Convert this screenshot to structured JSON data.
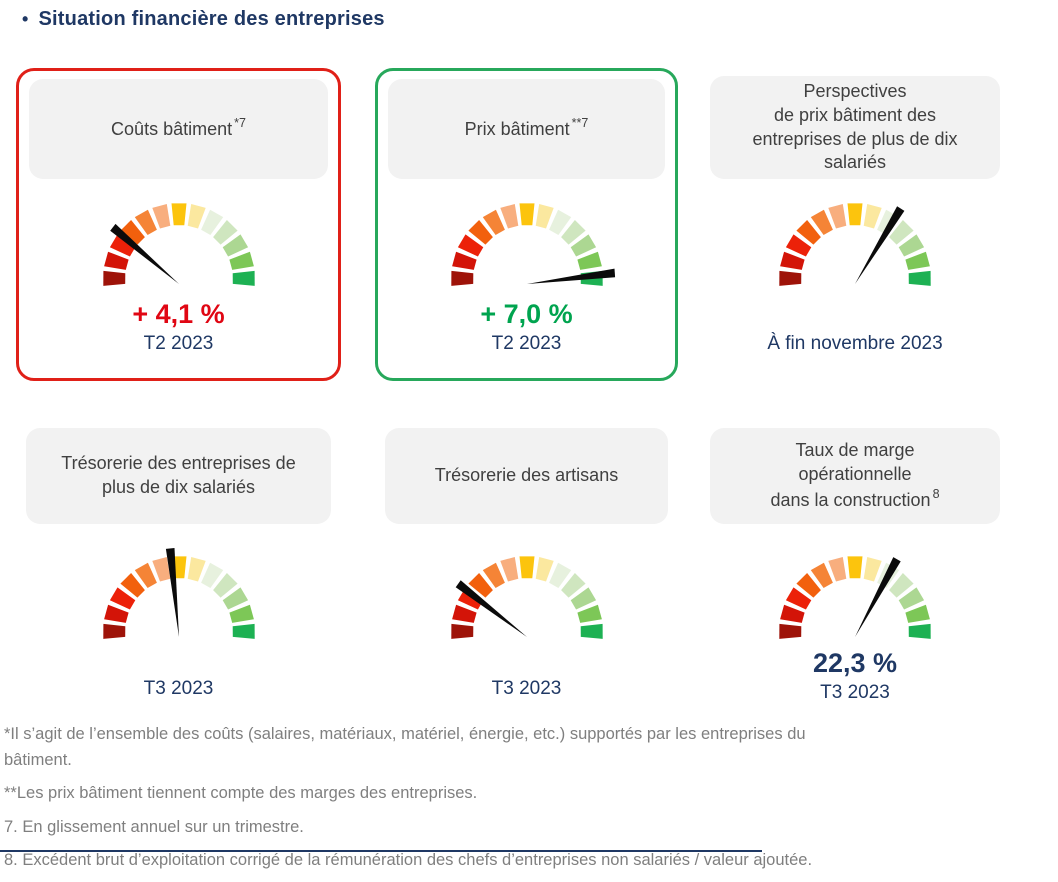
{
  "page": {
    "bullet": "•",
    "title": "Situation financière des entreprises"
  },
  "colors": {
    "navy": "#1F3864",
    "red_accent": "#E00613",
    "green_accent": "#00A44F",
    "card_red_border": "#E02018",
    "card_green_border": "#27A85B",
    "header_box_bg": "#F2F2F2",
    "footnote_gray": "#7F7F7F",
    "needle_black": "#0B0B0B"
  },
  "gauge_palette": [
    "#9E1309",
    "#D31408",
    "#EC2109",
    "#F2600D",
    "#F58436",
    "#F8AE7E",
    "#FCC40D",
    "#FBE89F",
    "#E7F1DE",
    "#CFE6BF",
    "#ACD792",
    "#7DC757",
    "#1DB153"
  ],
  "cards": [
    {
      "title": "Coûts bâtiment",
      "superscript": "*7",
      "value": "+ 4,1 %",
      "period": "T2 2023"
    },
    {
      "title": "Prix bâtiment",
      "superscript": "**7",
      "value": "+ 7,0 %",
      "period": "T2 2023"
    },
    {
      "title_lines": [
        "Perspectives",
        "de prix bâtiment des",
        "entreprises de plus de dix",
        "salariés"
      ],
      "period": "À fin novembre 2023"
    },
    {
      "title_lines": [
        "Trésorerie des entreprises de",
        "plus de dix salariés"
      ],
      "period": "T3 2023"
    },
    {
      "title": "Trésorerie des artisans",
      "period": "T3 2023"
    },
    {
      "title_lines": [
        "Taux de marge",
        "opérationnelle",
        "dans la construction"
      ],
      "superscript": "8",
      "value": "22,3 %",
      "period": "T3 2023"
    }
  ],
  "chart_data": [
    {
      "type": "gauge",
      "label": "Coûts bâtiment *7",
      "value": 4.1,
      "unit": "%",
      "display_value": "+ 4,1 %",
      "period": "T2 2023",
      "needle_angle_deg": 142,
      "needle_zone": "red (unfavorable)",
      "scale": "13-segment semicircular arc from dark red (left) to green (right)"
    },
    {
      "type": "gauge",
      "label": "Prix bâtiment **7",
      "value": 7.0,
      "unit": "%",
      "display_value": "+ 7,0 %",
      "period": "T2 2023",
      "needle_angle_deg": 4,
      "needle_length": 88,
      "needle_zone": "deep green (favorable)",
      "scale": "13-segment semicircular arc from dark red (left) to green (right)"
    },
    {
      "type": "gauge",
      "label": "Perspectives de prix bâtiment des entreprises de plus de dix salariés",
      "value": null,
      "display_value": "",
      "period": "À fin novembre 2023",
      "needle_angle_deg": 57,
      "needle_zone": "pale green (slightly favorable)",
      "scale": "13-segment semicircular arc from dark red (left) to green (right)"
    },
    {
      "type": "gauge",
      "label": "Trésorerie des entreprises de plus de dix salariés",
      "value": null,
      "display_value": "",
      "period": "T3 2023",
      "needle_angle_deg": 96,
      "needle_zone": "yellow/gold (neutral)",
      "scale": "13-segment semicircular arc from dark red (left) to green (right)"
    },
    {
      "type": "gauge",
      "label": "Trésorerie des artisans",
      "value": null,
      "display_value": "",
      "period": "T3 2023",
      "needle_angle_deg": 145,
      "needle_zone": "red (unfavorable)",
      "scale": "13-segment semicircular arc from dark red (left) to green (right)"
    },
    {
      "type": "gauge",
      "label": "Taux de marge opérationnelle dans la construction 8",
      "value": 22.3,
      "unit": "%",
      "display_value": "22,3 %",
      "period": "T3 2023",
      "needle_angle_deg": 60,
      "needle_zone": "pale green (slightly favorable)",
      "scale": "13-segment semicircular arc from dark red (left) to green (right)"
    }
  ],
  "footnotes": [
    [
      "*Il s’agit de l’ensemble des coûts (salaires, matériaux, matériel, énergie, etc.) supportés par les entreprises du",
      "bâtiment."
    ],
    "**Les prix bâtiment tiennent compte des marges des entreprises.",
    "7. En glissement annuel sur un trimestre.",
    "8. Excédent brut d’exploitation corrigé de la rémunération des chefs d’entreprises non salariés / valeur ajoutée."
  ]
}
